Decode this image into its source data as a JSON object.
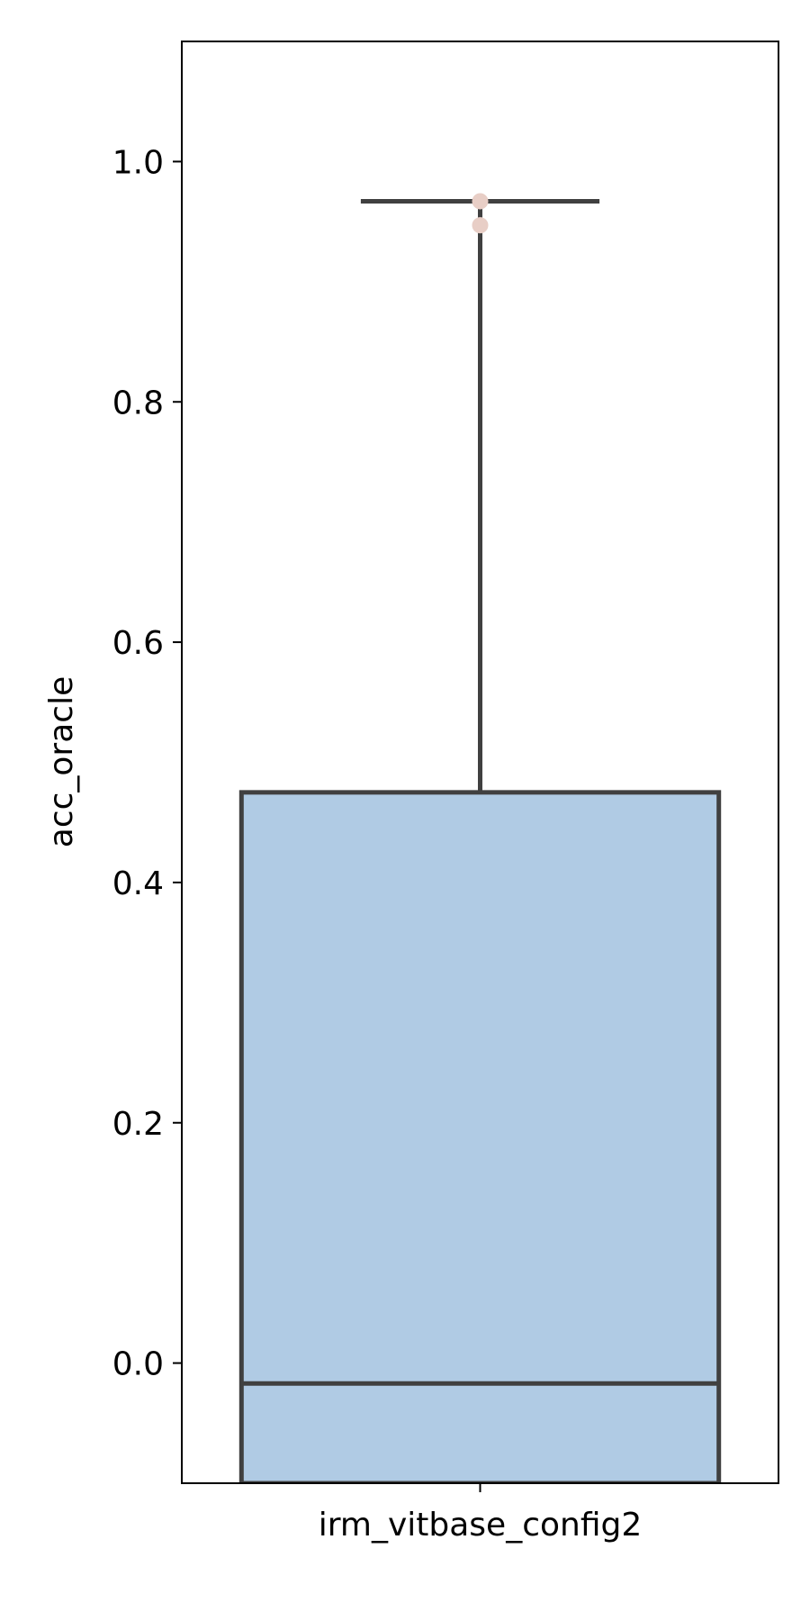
{
  "chart_data": {
    "type": "box",
    "title": "",
    "xlabel": "",
    "ylabel": "acc_oracle",
    "categories": [
      "irm_vitbase_config2"
    ],
    "ylim": [
      -0.1,
      1.1
    ],
    "yticks": [
      0.0,
      0.2,
      0.4,
      0.6,
      0.8,
      1.0
    ],
    "ytick_labels": [
      "0.0",
      "0.2",
      "0.4",
      "0.6",
      "0.8",
      "1.0"
    ],
    "grid": false,
    "boxes": [
      {
        "category": "irm_vitbase_config2",
        "q1": -0.1,
        "median": -0.017,
        "q3": 0.475,
        "whisker_low": -0.1,
        "whisker_high": 0.967,
        "fliers": [
          0.947,
          0.967
        ],
        "fill": "#b0cbe4",
        "flier_color": "#e8cec6",
        "line_color": "#404040"
      }
    ]
  }
}
